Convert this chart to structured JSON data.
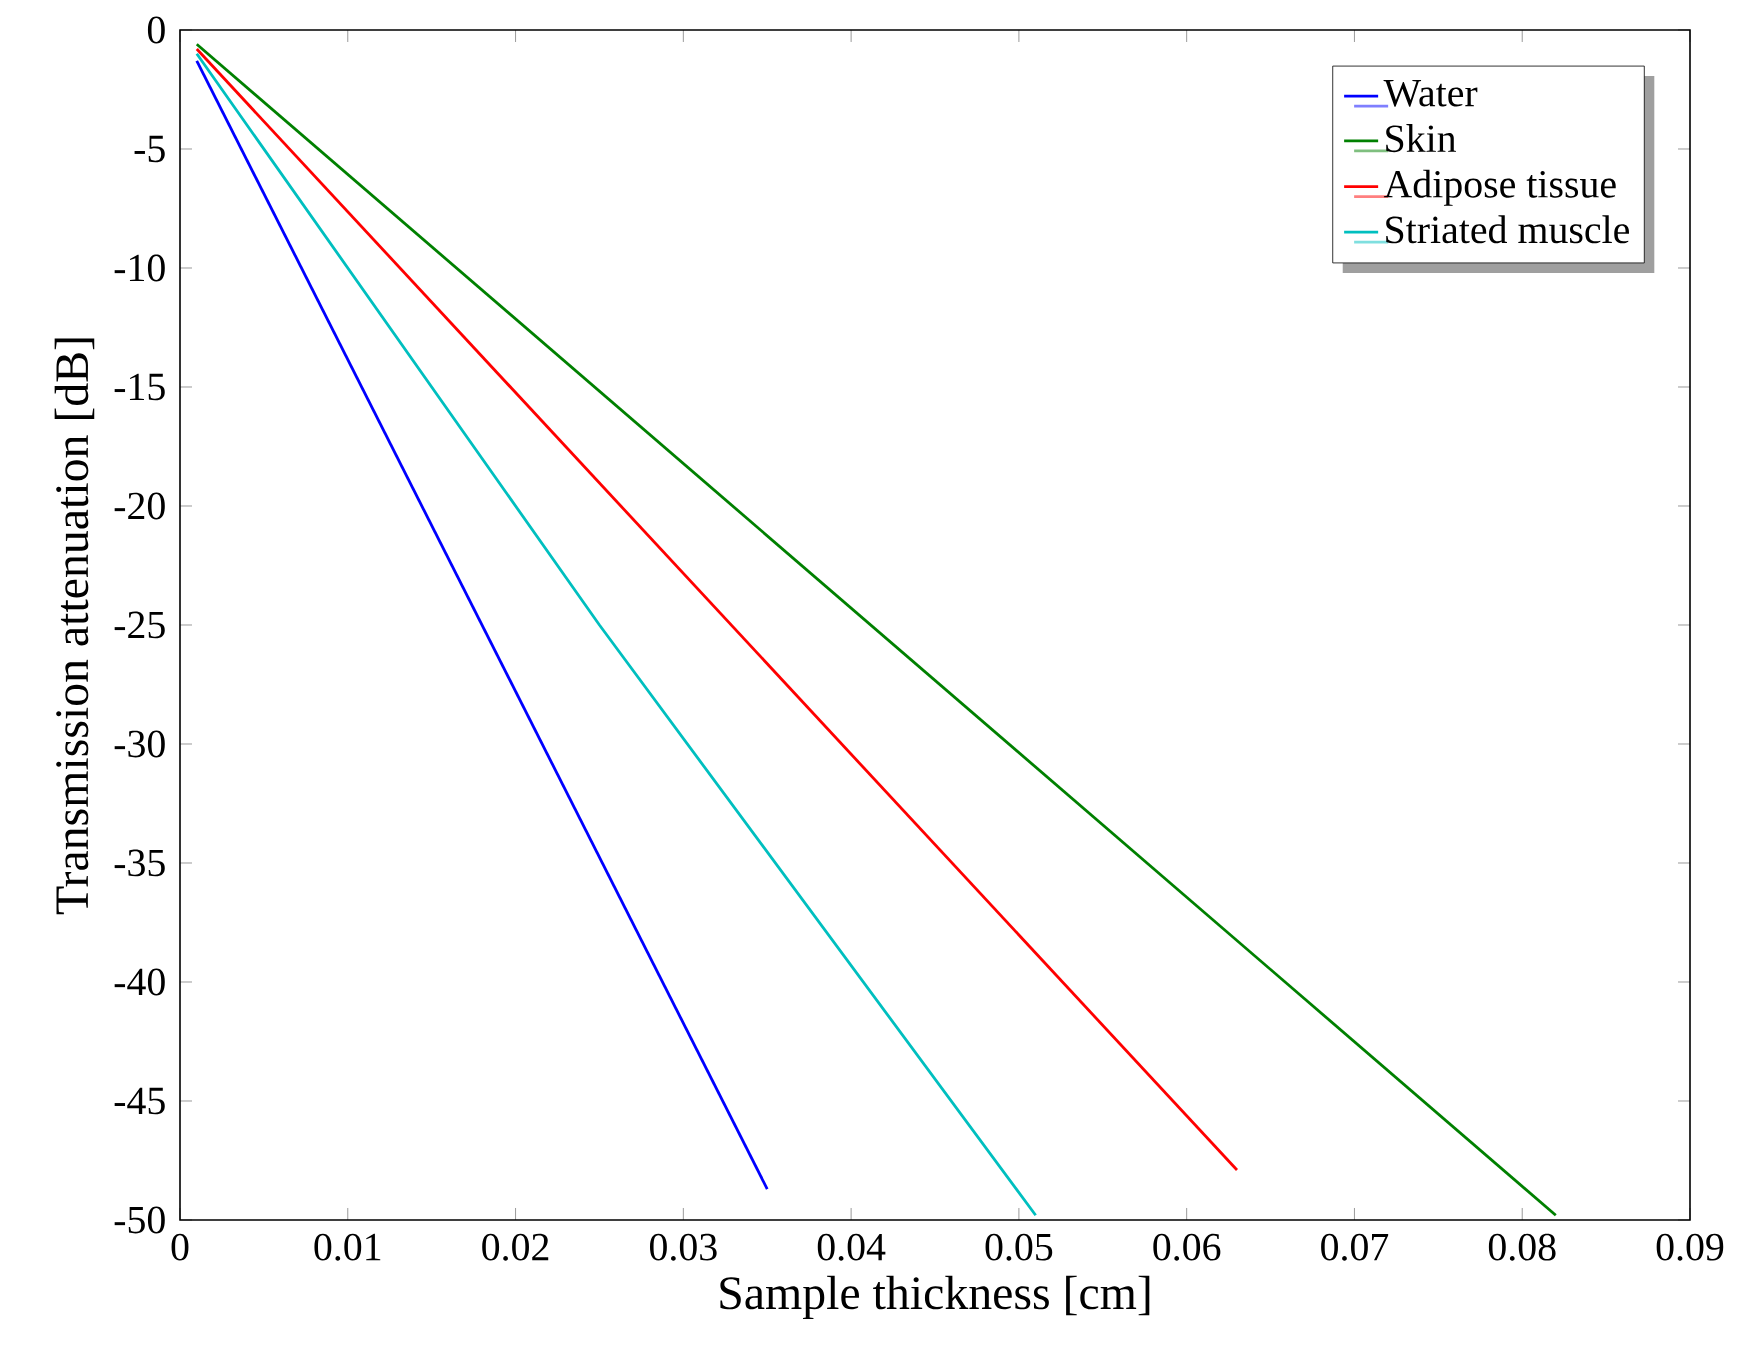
{
  "chart_data": {
    "type": "line",
    "xlabel": "Sample thickness [cm]",
    "ylabel": "Transmission attenuation [dB]",
    "xlim": [
      0,
      0.09
    ],
    "ylim": [
      -50,
      0
    ],
    "xticks": [
      0,
      0.01,
      0.02,
      0.03,
      0.04,
      0.05,
      0.06,
      0.07,
      0.08,
      0.09
    ],
    "yticks": [
      -50,
      -45,
      -40,
      -35,
      -30,
      -25,
      -20,
      -15,
      -10,
      -5,
      0
    ],
    "legend": "top right",
    "grid": false,
    "marker": "none",
    "line_style": "solid",
    "series": [
      {
        "name": "Water",
        "color": "#0000ff",
        "x": [
          0.001,
          0.035
        ],
        "values": [
          -1.3,
          -48.7
        ]
      },
      {
        "name": "Skin",
        "color": "#008000",
        "x": [
          0.001,
          0.082
        ],
        "values": [
          -0.6,
          -49.8
        ]
      },
      {
        "name": "Adipose tissue",
        "color": "#ff0000",
        "x": [
          0.001,
          0.063
        ],
        "values": [
          -0.8,
          -47.9
        ]
      },
      {
        "name": "Striated muscle",
        "color": "#00bfbf",
        "x": [
          0.001,
          0.025,
          0.051
        ],
        "values": [
          -1.0,
          -25,
          -49.8
        ]
      }
    ]
  }
}
